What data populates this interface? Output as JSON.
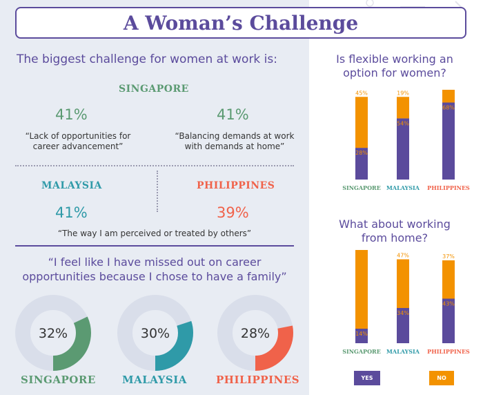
{
  "title": "A Woman’s Challenge",
  "left": {
    "question": "The biggest challenge for women at work is:",
    "singapore": {
      "label": "SINGAPORE",
      "items": [
        {
          "pct": "41%",
          "quote": "“Lack of opportunities for career advancement”"
        },
        {
          "pct": "41%",
          "quote": "“Balancing demands at work with demands at home”"
        }
      ]
    },
    "malaysia": {
      "label": "MALAYSIA",
      "pct": "41%"
    },
    "philippines": {
      "label": "PHILIPPINES",
      "pct": "39%"
    },
    "shared_quote": "“The way I am perceived or treated by others”",
    "family_quote": "“I feel like I have missed out on career opportunities because I chose to have a family”",
    "donut_labels": [
      "SINGAPORE",
      "MALAYSIA",
      "PHILIPPINES"
    ]
  },
  "right": {
    "q1": "Is flexible working an option for women?",
    "q2": "What about working from home?",
    "legend": {
      "yes": "YES",
      "no": "NO"
    }
  },
  "colors": {
    "purple": "#5b4b9c",
    "orange": "#f39200",
    "green": "#5b9a72",
    "teal": "#2f9aa8",
    "coral": "#f0624a",
    "donut_track": "#d9deea"
  },
  "chart_data": [
    {
      "type": "pie",
      "subtype": "donut",
      "categories": [
        "SINGAPORE",
        "MALAYSIA",
        "PHILIPPINES"
      ],
      "values": [
        32,
        30,
        28
      ],
      "labels": [
        "32%",
        "30%",
        "28%"
      ]
    },
    {
      "type": "bar",
      "stacked": true,
      "title": "Is flexible working an option for women?",
      "categories": [
        "SINGAPORE",
        "MALAYSIA",
        "PHILIPPINES"
      ],
      "series": [
        {
          "name": "YES",
          "values": [
            28,
            54,
            68
          ],
          "labels": [
            "28%",
            "54%",
            "68%"
          ]
        },
        {
          "name": "NO",
          "values": [
            45,
            19,
            13
          ],
          "labels": [
            "45%",
            "19%",
            "13%"
          ]
        }
      ]
    },
    {
      "type": "bar",
      "stacked": true,
      "title": "What about working from home?",
      "categories": [
        "SINGAPORE",
        "MALAYSIA",
        "PHILIPPINES"
      ],
      "series": [
        {
          "name": "YES",
          "values": [
            14,
            34,
            43
          ],
          "labels": [
            "14%",
            "34%",
            "43%"
          ]
        },
        {
          "name": "NO",
          "values": [
            77,
            47,
            37
          ],
          "labels": [
            "77%",
            "47%",
            "37%"
          ]
        }
      ]
    }
  ]
}
